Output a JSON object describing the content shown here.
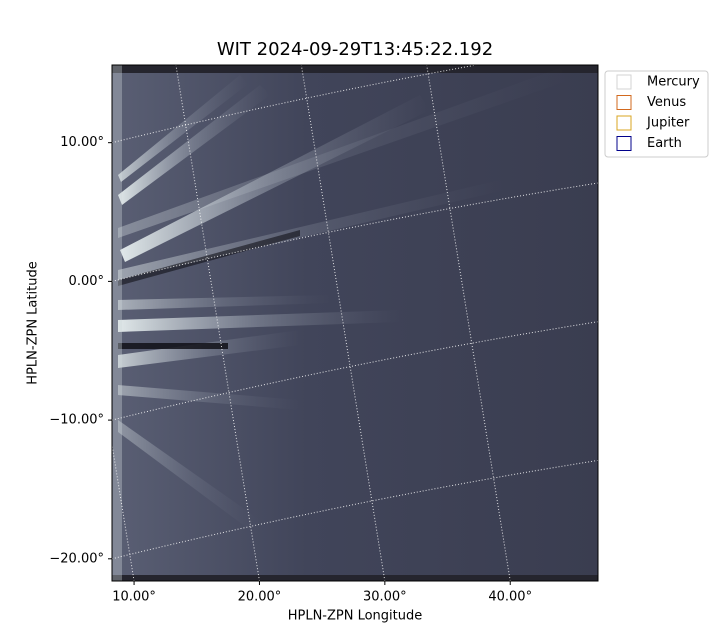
{
  "chart_data": {
    "type": "image",
    "title": "WIT 2024-09-29T13:45:22.192",
    "xlabel": "HPLN-ZPN Longitude",
    "ylabel": "HPLN-ZPN Latitude",
    "xlim": [
      8.24,
      47.0
    ],
    "ylim": [
      -21.6,
      15.6
    ],
    "xticks": [
      {
        "value": 10,
        "label": "10.00°"
      },
      {
        "value": 20,
        "label": "20.00°"
      },
      {
        "value": 30,
        "label": "30.00°"
      },
      {
        "value": 40,
        "label": "40.00°"
      }
    ],
    "yticks": [
      {
        "value": 10,
        "label": "10.00°"
      },
      {
        "value": 0,
        "label": "0.00°"
      },
      {
        "value": -10,
        "label": "−10.00°"
      },
      {
        "value": -20,
        "label": "−20.00°"
      }
    ],
    "grid": true,
    "legend_position": "outside-upper-right",
    "series": [
      {
        "name": "Mercury",
        "color": "#d3d3d3"
      },
      {
        "name": "Venus",
        "color": "#d2691e"
      },
      {
        "name": "Jupiter",
        "color": "#daa520"
      },
      {
        "name": "Earth",
        "color": "#00008b"
      }
    ]
  }
}
